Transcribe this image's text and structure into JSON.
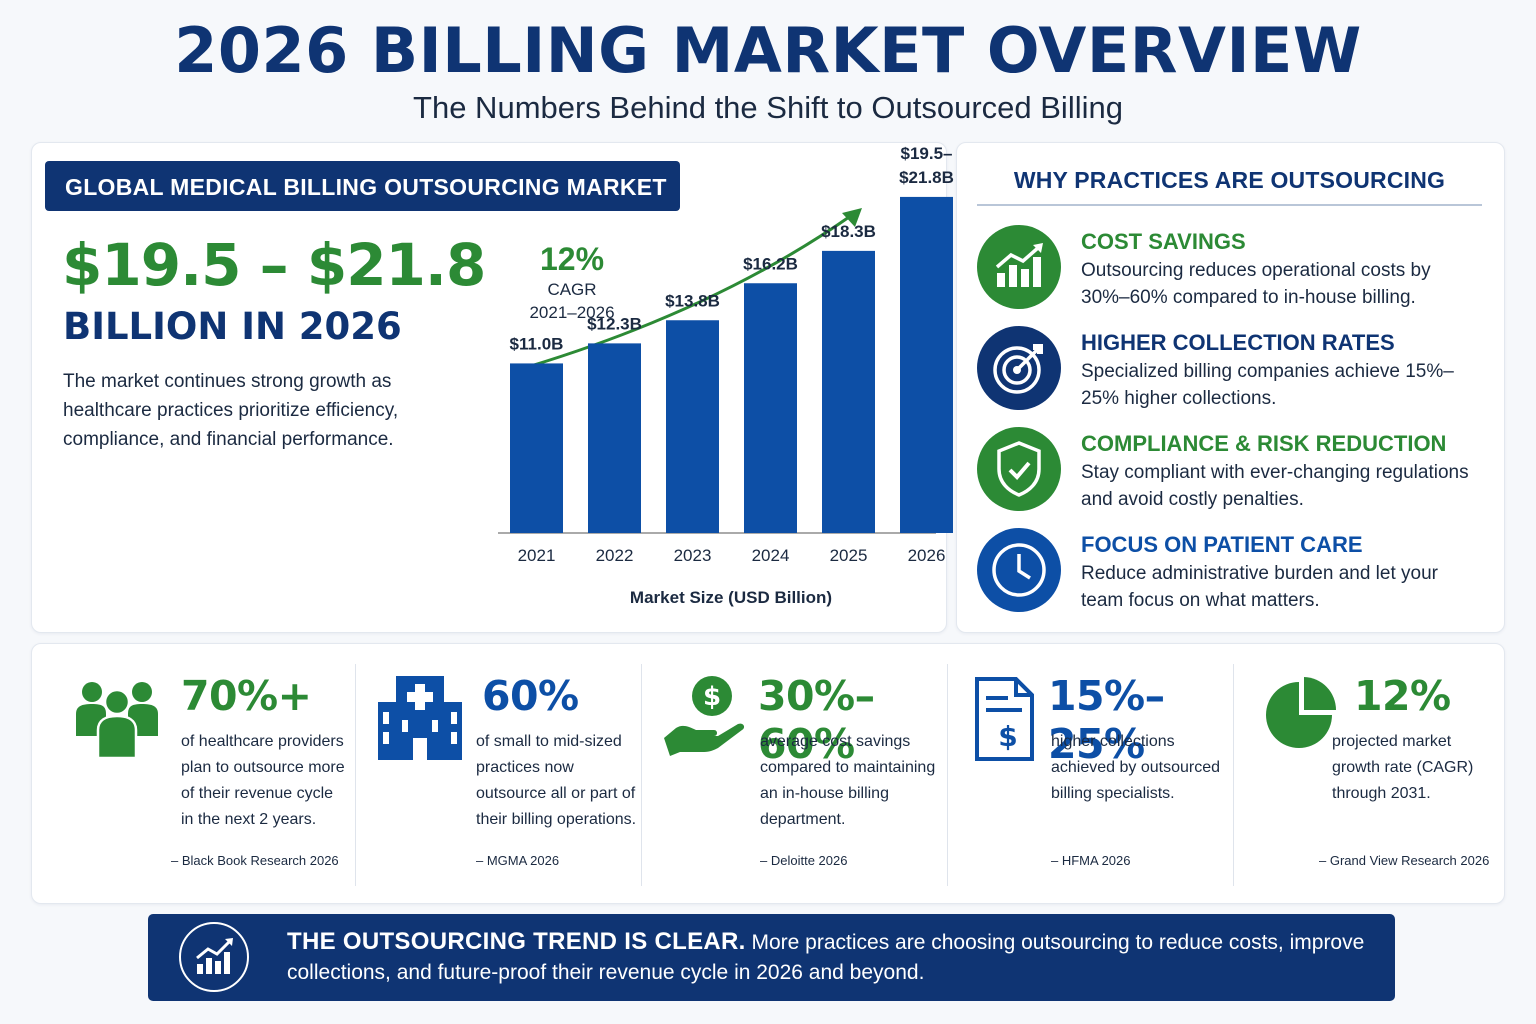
{
  "header": {
    "title": "2026 BILLING MARKET OVERVIEW",
    "subtitle": "The Numbers Behind the Shift to Outsourced Billing"
  },
  "market": {
    "label": "GLOBAL MEDICAL BILLING OUTSOURCING MARKET",
    "range": "$19.5 – $21.8",
    "unit": "BILLION IN 2026",
    "description": "The market continues strong growth as healthcare practices prioritize efficiency, compliance, and financial performance."
  },
  "chart_data": {
    "type": "bar",
    "categories": [
      "2021",
      "2022",
      "2023",
      "2024",
      "2025",
      "2026"
    ],
    "values": [
      11.0,
      12.3,
      13.8,
      16.2,
      18.3,
      21.8
    ],
    "value_labels": [
      "$11.0B",
      "$12.3B",
      "$13.8B",
      "$16.2B",
      "$18.3B",
      "$19.5– $21.8B"
    ],
    "xlabel": "Market Size (USD Billion)",
    "ylabel": "",
    "ylim": [
      0,
      24
    ],
    "grid": false,
    "trend_arrow": true,
    "cagr_value": "12%",
    "cagr_label": "CAGR",
    "cagr_period": "2021–2026",
    "bar_color": "#0d4fa6",
    "arrow_color": "#2c8a35"
  },
  "why": {
    "title": "WHY PRACTICES ARE OUTSOURCING",
    "items": [
      {
        "icon": "growth-chart-icon",
        "title": "COST SAVINGS",
        "text": "Outsourcing reduces operational costs by 30%–60% compared to in-house billing.",
        "color": "#2c8a35"
      },
      {
        "icon": "target-icon",
        "title": "HIGHER COLLECTION RATES",
        "text": "Specialized billing companies achieve 15%–25% higher collections.",
        "color": "#0f3473"
      },
      {
        "icon": "shield-check-icon",
        "title": "COMPLIANCE & RISK REDUCTION",
        "text": "Stay compliant with ever-changing regulations and avoid costly penalties.",
        "color": "#2c8a35"
      },
      {
        "icon": "clock-icon",
        "title": "FOCUS ON PATIENT CARE",
        "text": "Reduce administrative burden and let your team focus on what matters.",
        "color": "#0d4fa6"
      }
    ]
  },
  "stats": [
    {
      "icon": "people-icon",
      "value": "70%+",
      "text": "of healthcare providers plan to outsource more of their revenue cycle in the next 2 years.",
      "source": "– Black Book Research 2026",
      "color": "#2c8a35"
    },
    {
      "icon": "hospital-icon",
      "value": "60%",
      "text": "of small to mid-sized practices now outsource all or part of their billing operations.",
      "source": "– MGMA 2026",
      "color": "#0d4fa6"
    },
    {
      "icon": "hand-dollar-icon",
      "value": "30%–60%",
      "text": "average cost savings compared to maintaining an in-house billing department.",
      "source": "– Deloitte 2026",
      "color": "#2c8a35"
    },
    {
      "icon": "invoice-icon",
      "value": "15%–25%",
      "text": "higher collections achieved by outsourced billing specialists.",
      "source": "– HFMA 2026",
      "color": "#0d4fa6"
    },
    {
      "icon": "pie-chart-icon",
      "value": "12%",
      "text": "projected market growth rate (CAGR) through 2031.",
      "source": "– Grand View Research 2026",
      "color": "#2c8a35"
    }
  ],
  "banner": {
    "bold": "THE OUTSOURCING TREND IS CLEAR.",
    "text": "More practices are choosing outsourcing to reduce costs, improve collections, and future-proof their revenue cycle in 2026 and beyond."
  }
}
